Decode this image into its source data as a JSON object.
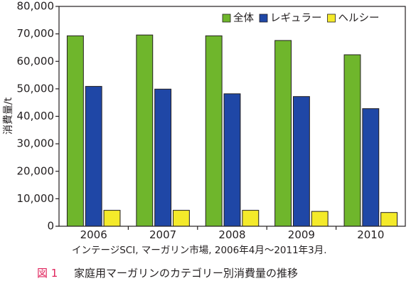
{
  "chart_data": {
    "type": "bar",
    "categories": [
      "2006",
      "2007",
      "2008",
      "2009",
      "2010"
    ],
    "series": [
      {
        "name": "全体",
        "color": "#6fb62c",
        "values": [
          69300,
          69600,
          69300,
          67600,
          62400
        ]
      },
      {
        "name": "レギュラー",
        "color": "#1f47a6",
        "values": [
          50900,
          49900,
          48200,
          47200,
          42800
        ]
      },
      {
        "name": "ヘルシー",
        "color": "#f4ea2a",
        "values": [
          5800,
          5800,
          5800,
          5400,
          5000
        ]
      }
    ],
    "ylabel": "消費量/t",
    "ylim": [
      0,
      80000
    ],
    "yticks": [
      "0",
      "10,000",
      "20,000",
      "30,000",
      "40,000",
      "50,000",
      "60,000",
      "70,000",
      "80,000"
    ],
    "grid": false,
    "legend_position": "top-right"
  },
  "source_note": "インテージSCI, マーガリン市場, 2006年4月〜2011年3月.",
  "figure": {
    "number": "図 1",
    "caption": "家庭用マーガリンのカテゴリー別消費量の推移",
    "number_color": "#e0245c"
  }
}
